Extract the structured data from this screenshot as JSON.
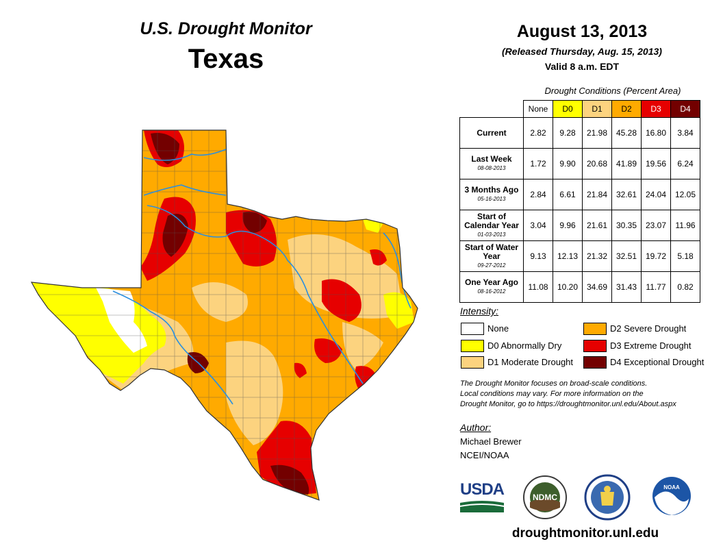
{
  "header": {
    "monitor_title": "U.S. Drought Monitor",
    "state": "Texas",
    "date": "August 13, 2013",
    "released": "(Released Thursday, Aug. 15, 2013)",
    "valid": "Valid 8 a.m. EDT"
  },
  "table": {
    "title": "Drought Conditions (Percent Area)",
    "columns": [
      "None",
      "D0",
      "D1",
      "D2",
      "D3",
      "D4"
    ],
    "column_colors": [
      "#ffffff",
      "#ffff00",
      "#fcd37f",
      "#ffaa00",
      "#e60000",
      "#730000"
    ],
    "rows": [
      {
        "label": "Current",
        "date": "",
        "values": [
          "2.82",
          "9.28",
          "21.98",
          "45.28",
          "16.80",
          "3.84"
        ]
      },
      {
        "label": "Last Week",
        "date": "08-08-2013",
        "values": [
          "1.72",
          "9.90",
          "20.68",
          "41.89",
          "19.56",
          "6.24"
        ]
      },
      {
        "label": "3 Months Ago",
        "date": "05-16-2013",
        "values": [
          "2.84",
          "6.61",
          "21.84",
          "32.61",
          "24.04",
          "12.05"
        ]
      },
      {
        "label": "Start of Calendar Year",
        "date": "01-03-2013",
        "values": [
          "3.04",
          "9.96",
          "21.61",
          "30.35",
          "23.07",
          "11.96"
        ]
      },
      {
        "label": "Start of Water Year",
        "date": "09-27-2012",
        "values": [
          "9.13",
          "12.13",
          "21.32",
          "32.51",
          "19.72",
          "5.18"
        ]
      },
      {
        "label": "One Year Ago",
        "date": "08-16-2012",
        "values": [
          "11.08",
          "10.20",
          "34.69",
          "31.43",
          "11.77",
          "0.82"
        ]
      }
    ]
  },
  "legend": {
    "title": "Intensity:",
    "items": [
      {
        "label": "None",
        "color": "#ffffff"
      },
      {
        "label": "D0 Abnormally Dry",
        "color": "#ffff00"
      },
      {
        "label": "D1 Moderate Drought",
        "color": "#fcd37f"
      },
      {
        "label": "D2 Severe Drought",
        "color": "#ffaa00"
      },
      {
        "label": "D3 Extreme Drought",
        "color": "#e60000"
      },
      {
        "label": "D4 Exceptional Drought",
        "color": "#730000"
      }
    ]
  },
  "note": {
    "line1": "The Drought Monitor focuses on broad-scale conditions.",
    "line2": "Local conditions may vary. For more information on the",
    "line3": "Drought Monitor, go to https://droughtmonitor.unl.edu/About.aspx"
  },
  "author": {
    "label": "Author:",
    "name": "Michael Brewer",
    "org": "NCEI/NOAA"
  },
  "logos": {
    "usda": "USDA",
    "ndmc": "NDMC",
    "noaa": "NOAA"
  },
  "footer_url": "droughtmonitor.unl.edu",
  "map_icon": "texas-drought-map",
  "river_color": "#2a8fe0"
}
